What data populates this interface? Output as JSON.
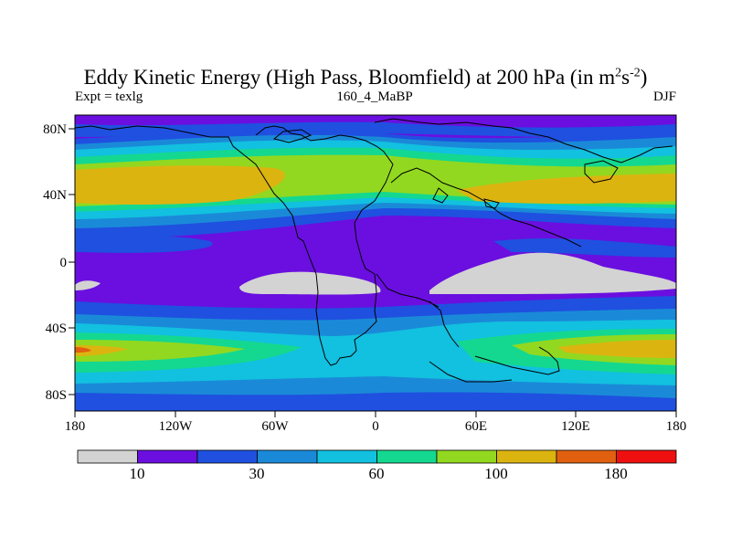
{
  "title": {
    "main": "Eddy Kinetic Energy (High Pass, Bloomfield) at 200 hPa (in m",
    "sup1": "2",
    "mid": "s",
    "sup2": "-2",
    "end": ")"
  },
  "subtitle": {
    "left": "Expt = texlg",
    "center": "160_4_MaBP",
    "right": "DJF"
  },
  "axes": {
    "x_ticks": [
      "180",
      "120W",
      "60W",
      "0",
      "60E",
      "120E",
      "180"
    ],
    "y_ticks": [
      "80N",
      "40N",
      "0",
      "40S",
      "80S"
    ]
  },
  "colorbar": {
    "colors": [
      "#d3d3d3",
      "#6a0fe0",
      "#1f50e0",
      "#1a8ad8",
      "#12c0e0",
      "#14d890",
      "#92d820",
      "#dcb410",
      "#e06010",
      "#ee1010"
    ],
    "labels": [
      "10",
      "30",
      "60",
      "100",
      "180"
    ]
  },
  "legend_colors": {
    "gray": "#d3d3d3",
    "purple": "#6a0fe0",
    "blue": "#1f50e0",
    "medblue": "#1a8ad8",
    "cyan": "#12c0e0",
    "green": "#14d890",
    "yellowgreen": "#92d820",
    "gold": "#dcb410",
    "orange": "#e06010",
    "red": "#ee1010"
  }
}
